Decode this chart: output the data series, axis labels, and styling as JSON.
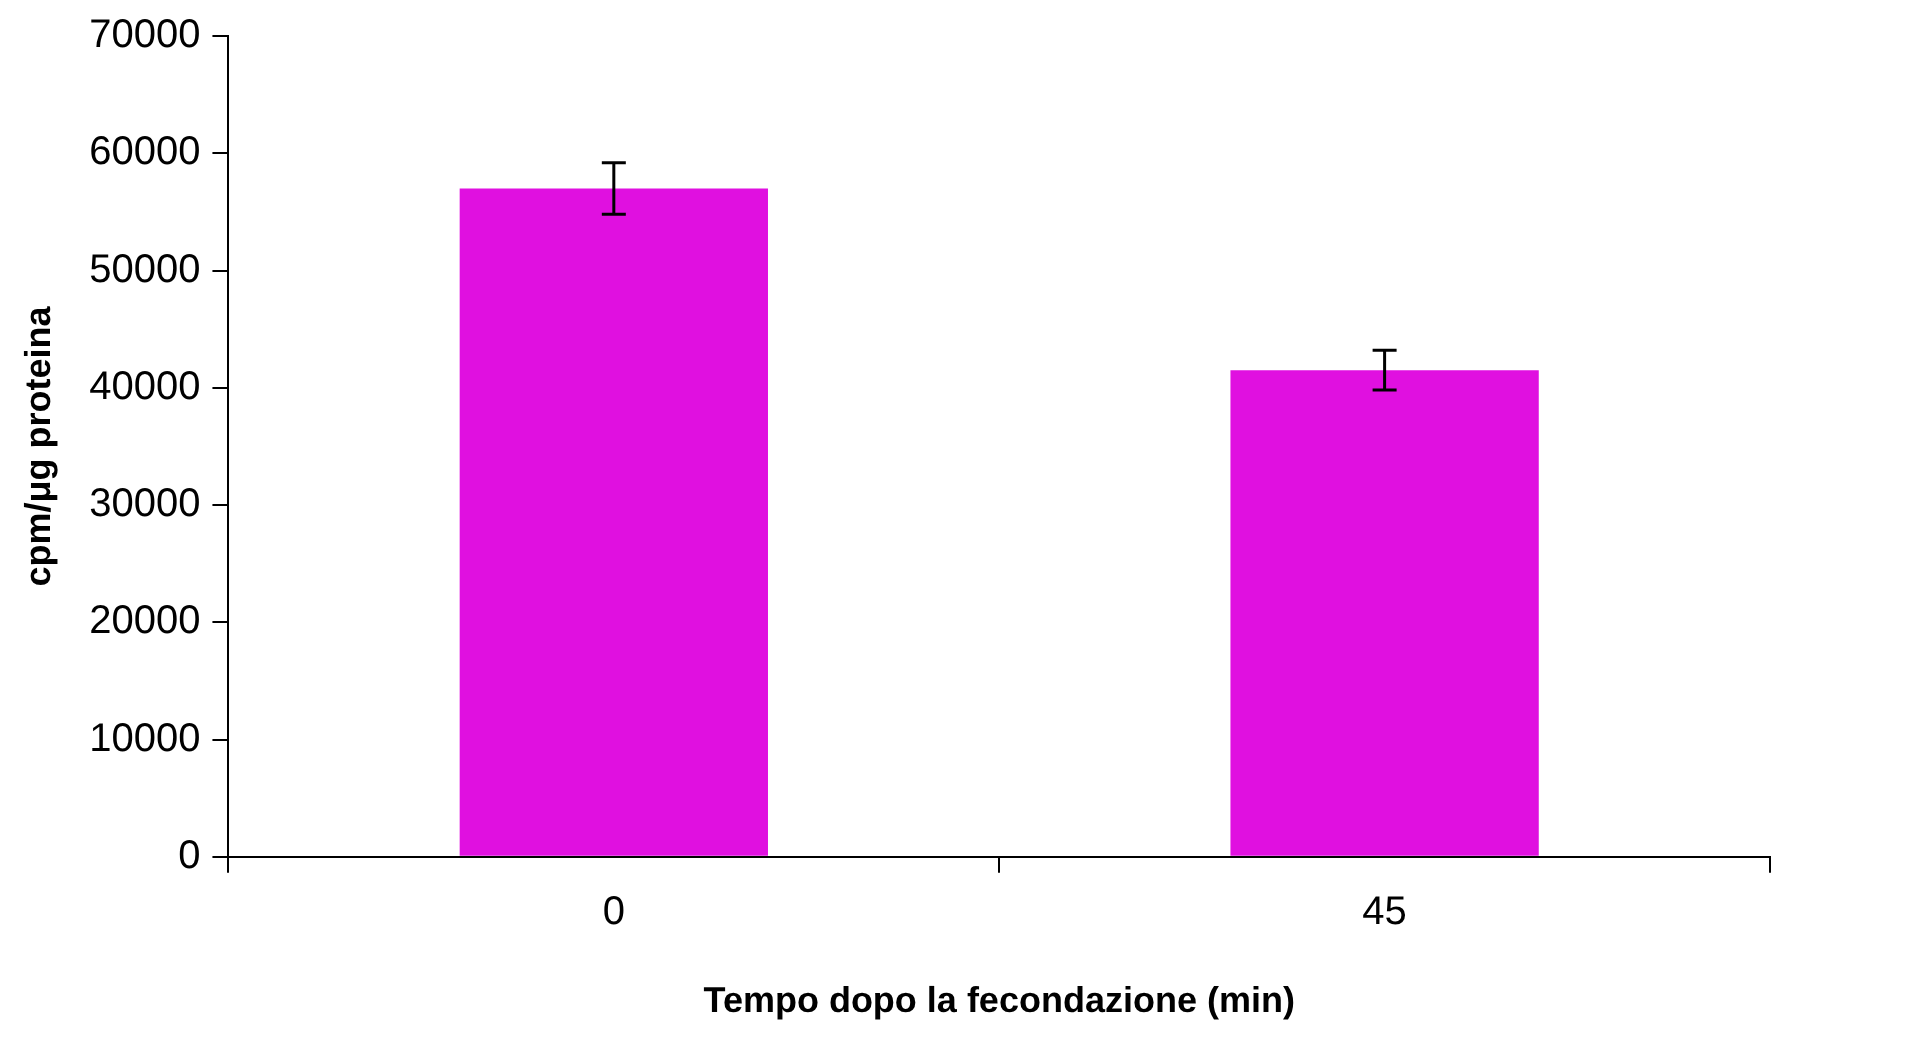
{
  "chart_data": {
    "type": "bar",
    "xlabel": "Tempo dopo la fecondazione (min)",
    "ylabel": "cpm/μg proteina",
    "categories": [
      "0",
      "45"
    ],
    "series": [
      {
        "color": "#e010e0",
        "values": [
          57000,
          41500
        ],
        "errors": [
          2200,
          1700
        ]
      }
    ],
    "ylim": [
      0,
      70000
    ],
    "yticks": [
      0,
      10000,
      20000,
      30000,
      40000,
      50000,
      60000,
      70000
    ],
    "grid": false,
    "legend": false
  }
}
